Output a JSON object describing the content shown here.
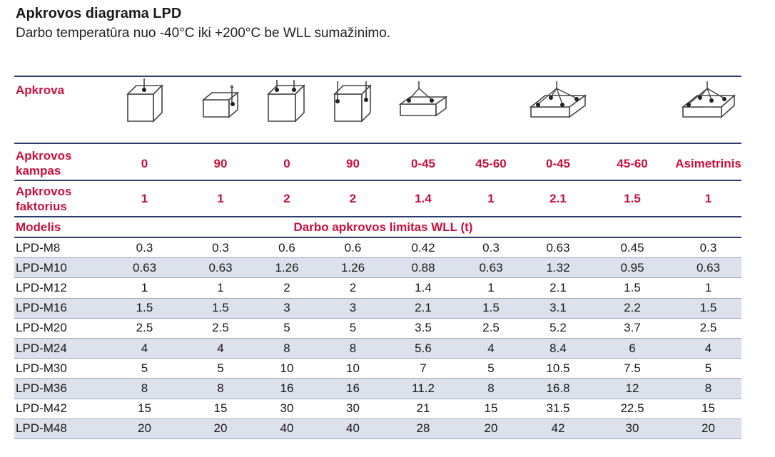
{
  "title": "Apkrovos diagrama LPD",
  "subtitle": "Darbo temperatūra nuo -40°C iki +200°C be WLL sumažinimo.",
  "headers": {
    "load": "Apkrova",
    "angle_line1": "Apkrovos",
    "angle_line2": "kampas",
    "factor_line1": "Apkrovos",
    "factor_line2": "faktorius",
    "model": "Modelis",
    "wll": "Darbo apkrovos limitas WLL (t)"
  },
  "icons": [
    "single-leg-vertical-load-icon",
    "single-leg-90-load-icon",
    "two-leg-vertical-load-icon",
    "two-leg-90-load-icon",
    "two-leg-sling-load-icon",
    "two-leg-sling-load-icon-2",
    "four-leg-sling-load-icon",
    "four-leg-sling-load-icon-2",
    "asymmetric-sling-load-icon"
  ],
  "angles": [
    "0",
    "90",
    "0",
    "90",
    "0-45",
    "45-60",
    "0-45",
    "45-60",
    "Asimetrinis"
  ],
  "factors": [
    "1",
    "1",
    "2",
    "2",
    "1.4",
    "1",
    "2.1",
    "1.5",
    "1"
  ],
  "rows": [
    {
      "model": "LPD-M8",
      "values": [
        "0.3",
        "0.3",
        "0.6",
        "0.6",
        "0.42",
        "0.3",
        "0.63",
        "0.45",
        "0.3"
      ]
    },
    {
      "model": "LPD-M10",
      "values": [
        "0.63",
        "0.63",
        "1.26",
        "1.26",
        "0.88",
        "0.63",
        "1.32",
        "0.95",
        "0.63"
      ]
    },
    {
      "model": "LPD-M12",
      "values": [
        "1",
        "1",
        "2",
        "2",
        "1.4",
        "1",
        "2.1",
        "1.5",
        "1"
      ]
    },
    {
      "model": "LPD-M16",
      "values": [
        "1.5",
        "1.5",
        "3",
        "3",
        "2.1",
        "1.5",
        "3.1",
        "2.2",
        "1.5"
      ]
    },
    {
      "model": "LPD-M20",
      "values": [
        "2.5",
        "2.5",
        "5",
        "5",
        "3.5",
        "2.5",
        "5.2",
        "3.7",
        "2.5"
      ]
    },
    {
      "model": "LPD-M24",
      "values": [
        "4",
        "4",
        "8",
        "8",
        "5.6",
        "4",
        "8.4",
        "6",
        "4"
      ]
    },
    {
      "model": "LPD-M30",
      "values": [
        "5",
        "5",
        "10",
        "10",
        "7",
        "5",
        "10.5",
        "7.5",
        "5"
      ]
    },
    {
      "model": "LPD-M36",
      "values": [
        "8",
        "8",
        "16",
        "16",
        "11.2",
        "8",
        "16.8",
        "12",
        "8"
      ]
    },
    {
      "model": "LPD-M42",
      "values": [
        "15",
        "15",
        "30",
        "30",
        "21",
        "15",
        "31.5",
        "22.5",
        "15"
      ]
    },
    {
      "model": "LPD-M48",
      "values": [
        "20",
        "20",
        "40",
        "40",
        "28",
        "20",
        "42",
        "30",
        "20"
      ]
    }
  ],
  "colors": {
    "accent": "#c8103e",
    "rule": "#2b3f6e",
    "shade": "#dde1ec"
  }
}
